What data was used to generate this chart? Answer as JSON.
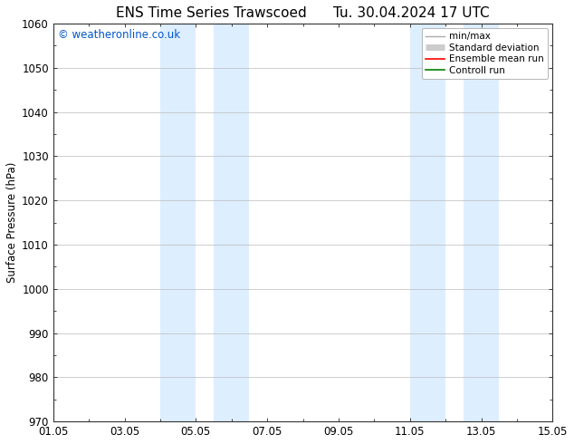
{
  "title": "ENS Time Series Trawscoed",
  "title_right": "Tu. 30.04.2024 17 UTC",
  "ylabel": "Surface Pressure (hPa)",
  "xlabel_ticks": [
    "01.05",
    "03.05",
    "05.05",
    "07.05",
    "09.05",
    "11.05",
    "13.05",
    "15.05"
  ],
  "xtick_positions": [
    0,
    2,
    4,
    6,
    8,
    10,
    12,
    14
  ],
  "ylim": [
    970,
    1060
  ],
  "yticks": [
    970,
    980,
    990,
    1000,
    1010,
    1020,
    1030,
    1040,
    1050,
    1060
  ],
  "background_color": "#ffffff",
  "plot_bg_color": "#ffffff",
  "shaded_bands": [
    {
      "x_start": 3.0,
      "x_end": 4.0
    },
    {
      "x_start": 4.5,
      "x_end": 5.5
    },
    {
      "x_start": 10.0,
      "x_end": 11.0
    },
    {
      "x_start": 11.5,
      "x_end": 12.5
    }
  ],
  "shaded_color": "#ddeeff",
  "watermark": "© weatheronline.co.uk",
  "watermark_color": "#0055cc",
  "legend_entries": [
    {
      "label": "min/max",
      "color": "#aaaaaa",
      "lw": 1.0,
      "type": "line"
    },
    {
      "label": "Standard deviation",
      "color": "#cccccc",
      "lw": 5,
      "type": "band"
    },
    {
      "label": "Ensemble mean run",
      "color": "#ff0000",
      "lw": 1.2,
      "type": "line"
    },
    {
      "label": "Controll run",
      "color": "#008000",
      "lw": 1.2,
      "type": "line"
    }
  ],
  "grid_color": "#bbbbbb",
  "tick_label_fontsize": 8.5,
  "title_fontsize": 11,
  "ylabel_fontsize": 8.5,
  "watermark_fontsize": 8.5,
  "legend_fontsize": 7.5
}
